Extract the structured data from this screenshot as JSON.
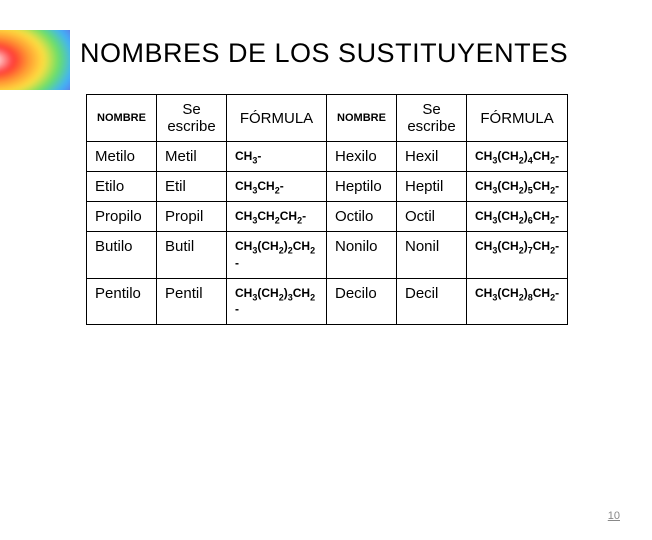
{
  "title": "NOMBRES DE LOS SUSTITUYENTES",
  "headers": {
    "nombre": "NOMBRE",
    "escribe": "Se escribe",
    "formula": "FÓRMULA"
  },
  "rows": [
    {
      "nombreA": "Metilo",
      "escribeA": "Metil",
      "formulaA": "CH3-",
      "nombreB": "Hexilo",
      "escribeB": "Hexil",
      "formulaB": "CH3(CH2)4CH2-"
    },
    {
      "nombreA": " Etilo",
      "escribeA": "Etil",
      "formulaA": "CH3CH2-",
      "nombreB": "Heptilo",
      "escribeB": "Heptil",
      "formulaB": "CH3(CH2)5CH2-"
    },
    {
      "nombreA": "Propilo",
      "escribeA": "Propil",
      "formulaA": "CH3CH2CH2-",
      "nombreB": "Octilo",
      "escribeB": "Octil",
      "formulaB": "CH3(CH2)6CH2-"
    },
    {
      "nombreA": "Butilo",
      "escribeA": "Butil",
      "formulaA": "CH3(CH2)2CH2 -",
      "nombreB": "Nonilo",
      "escribeB": "Nonil",
      "formulaB": "CH3(CH2)7CH2-"
    },
    {
      "nombreA": "Pentilo",
      "escribeA": "Pentil",
      "formulaA": "CH3(CH2)3CH2 -",
      "nombreB": "Decilo",
      "escribeB": "Decil",
      "formulaB": "CH3(CH2)8CH2-"
    }
  ],
  "pageNumber": "10",
  "style": {
    "tableBorderColor": "#000000",
    "titleFontSize": 27,
    "headerNombreFontSize": 11,
    "headerOtherFontSize": 15,
    "cellFontSize": 15,
    "formulaFontSize": 12,
    "colWidths": {
      "nombre": 70,
      "escribe": 70,
      "formula": 100
    },
    "rainbowColors": [
      "#ff3333",
      "#ff9933",
      "#ffe040",
      "#66e066",
      "#40b0ff",
      "#7060d0",
      "#c060c0"
    ]
  }
}
